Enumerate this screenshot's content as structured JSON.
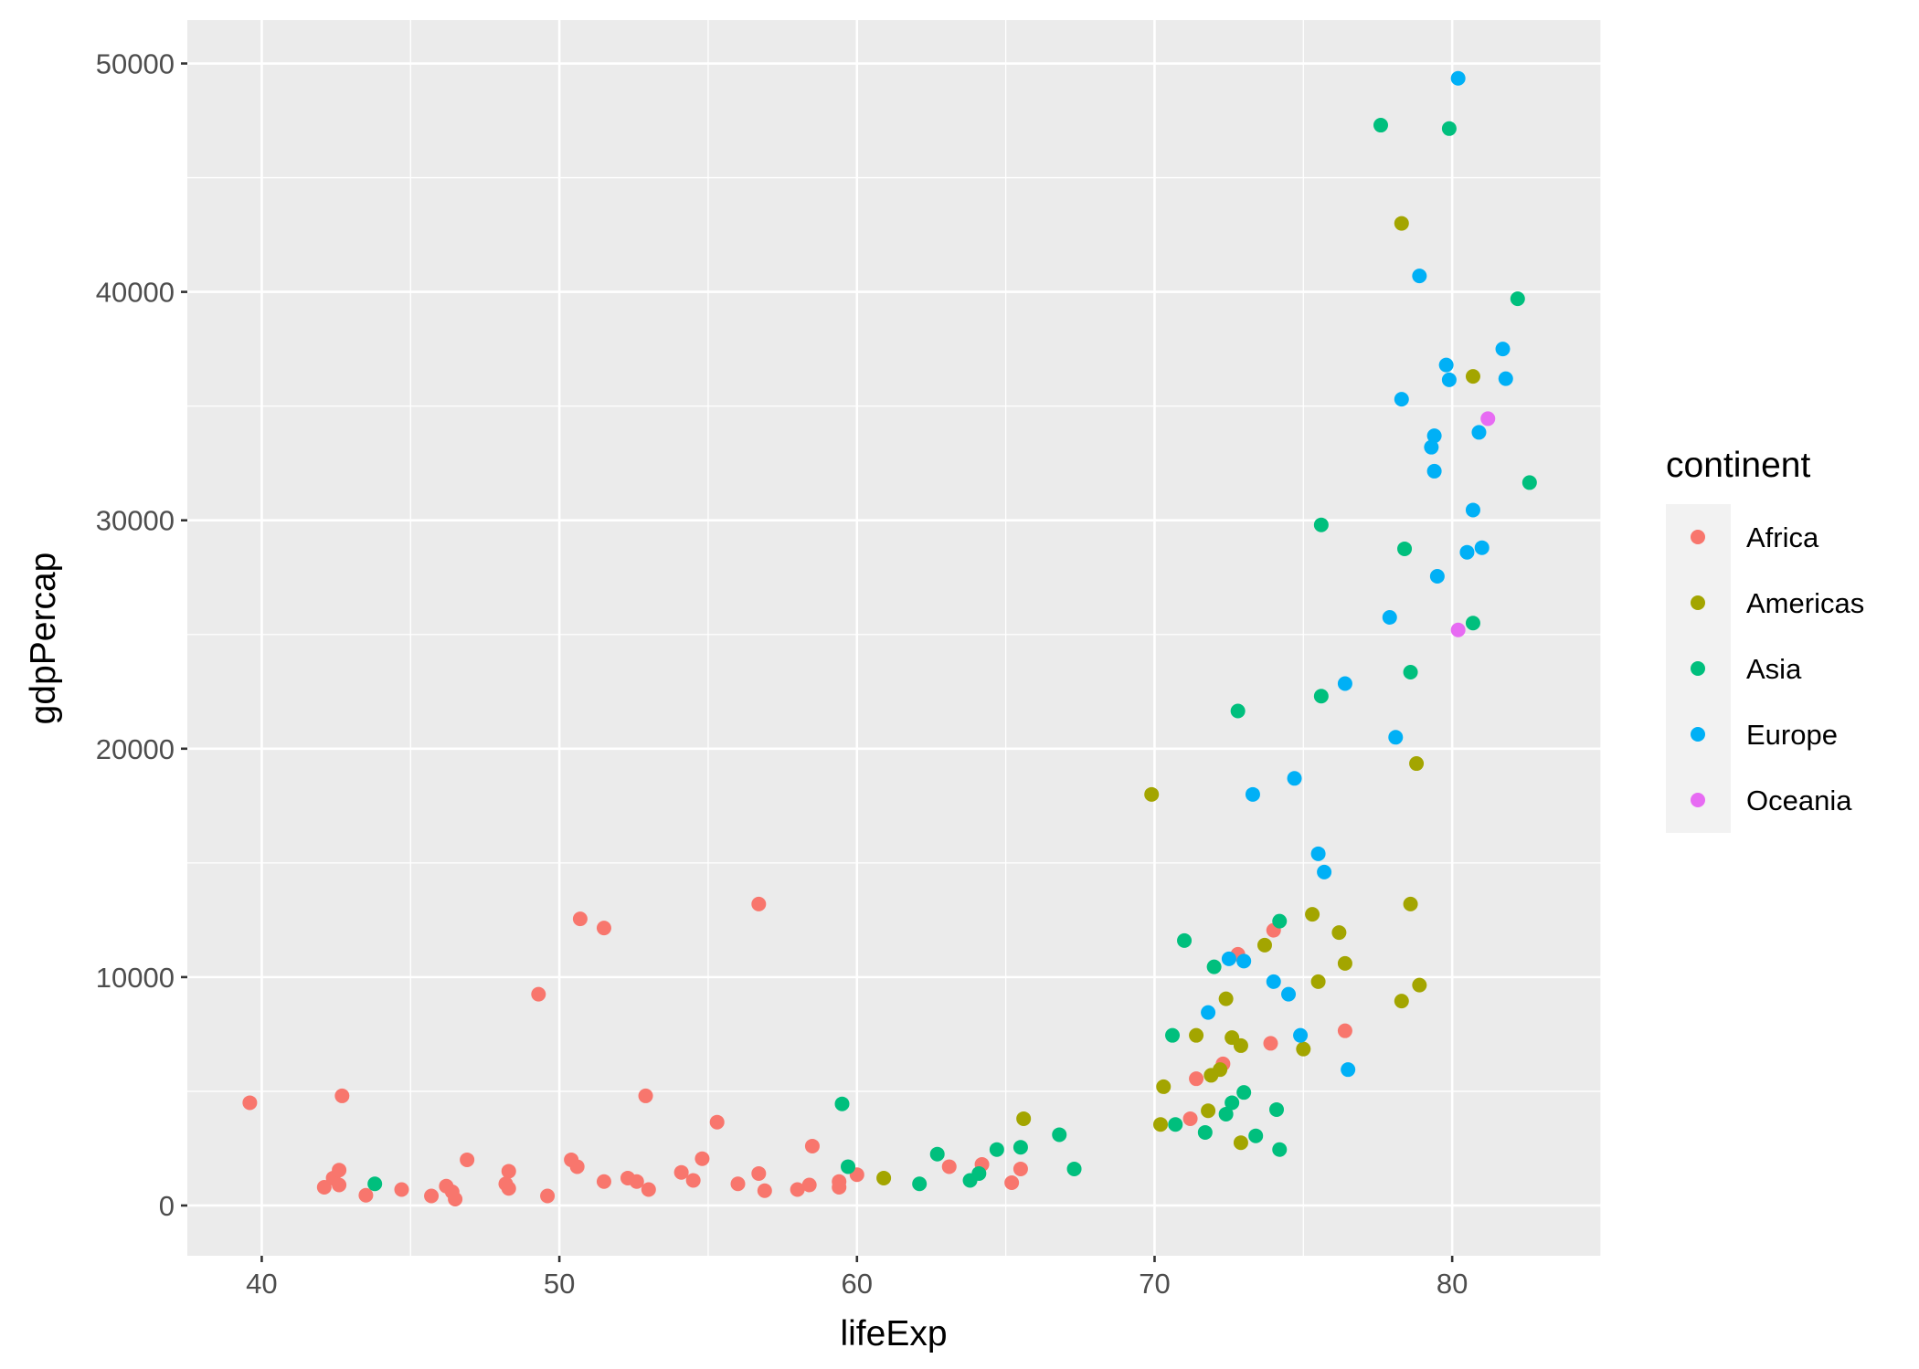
{
  "chart_data": {
    "type": "scatter",
    "xlabel": "lifeExp",
    "ylabel": "gdpPercap",
    "xlim": [
      37.5,
      85.0
    ],
    "ylim": [
      -2200,
      51900
    ],
    "x_ticks": [
      40,
      50,
      60,
      70,
      80
    ],
    "y_ticks": [
      0,
      10000,
      20000,
      30000,
      40000,
      50000
    ],
    "x_tick_labels": [
      "40",
      "50",
      "60",
      "70",
      "80"
    ],
    "y_tick_labels": [
      "0",
      "10000",
      "20000",
      "30000",
      "40000",
      "50000"
    ],
    "grid": true,
    "panel_background": "#EBEBEB",
    "legend": {
      "title": "continent",
      "placement": "right",
      "entries": [
        "Africa",
        "Americas",
        "Asia",
        "Europe",
        "Oceania"
      ]
    },
    "series": [
      {
        "name": "Africa",
        "color": "#F8766D",
        "points": [
          [
            39.6,
            4500
          ],
          [
            42.1,
            800
          ],
          [
            42.4,
            1200
          ],
          [
            42.6,
            1550
          ],
          [
            42.6,
            900
          ],
          [
            42.7,
            4800
          ],
          [
            43.5,
            450
          ],
          [
            44.7,
            700
          ],
          [
            45.7,
            420
          ],
          [
            46.2,
            850
          ],
          [
            46.4,
            600
          ],
          [
            46.5,
            280
          ],
          [
            46.9,
            2000
          ],
          [
            48.2,
            950
          ],
          [
            48.3,
            1500
          ],
          [
            48.3,
            750
          ],
          [
            49.3,
            9250
          ],
          [
            49.6,
            420
          ],
          [
            50.4,
            2000
          ],
          [
            50.7,
            12550
          ],
          [
            50.6,
            1700
          ],
          [
            51.5,
            12150
          ],
          [
            51.5,
            1050
          ],
          [
            52.3,
            1200
          ],
          [
            52.6,
            1050
          ],
          [
            52.9,
            4800
          ],
          [
            53.0,
            700
          ],
          [
            54.1,
            1450
          ],
          [
            54.5,
            1100
          ],
          [
            54.8,
            2050
          ],
          [
            55.3,
            3650
          ],
          [
            56.0,
            950
          ],
          [
            56.7,
            13200
          ],
          [
            56.7,
            1400
          ],
          [
            56.9,
            650
          ],
          [
            58.0,
            700
          ],
          [
            58.4,
            900
          ],
          [
            58.5,
            2600
          ],
          [
            59.4,
            800
          ],
          [
            59.4,
            1050
          ],
          [
            60.0,
            1350
          ],
          [
            63.1,
            1700
          ],
          [
            64.2,
            1800
          ],
          [
            65.2,
            1000
          ],
          [
            65.5,
            1600
          ],
          [
            71.2,
            3800
          ],
          [
            71.4,
            5550
          ],
          [
            72.3,
            6200
          ],
          [
            72.8,
            11000
          ],
          [
            73.9,
            7100
          ],
          [
            74.0,
            12050
          ],
          [
            76.4,
            7650
          ]
        ]
      },
      {
        "name": "Americas",
        "color": "#A3A500",
        "points": [
          [
            60.9,
            1200
          ],
          [
            65.6,
            3800
          ],
          [
            69.9,
            18000
          ],
          [
            70.3,
            5200
          ],
          [
            70.2,
            3550
          ],
          [
            71.4,
            7450
          ],
          [
            71.8,
            4150
          ],
          [
            71.9,
            5700
          ],
          [
            72.2,
            5950
          ],
          [
            72.4,
            9050
          ],
          [
            72.6,
            7350
          ],
          [
            72.9,
            7000
          ],
          [
            72.9,
            2750
          ],
          [
            73.7,
            11400
          ],
          [
            75.0,
            6850
          ],
          [
            75.3,
            12750
          ],
          [
            75.5,
            9800
          ],
          [
            76.2,
            11950
          ],
          [
            76.4,
            10600
          ],
          [
            78.3,
            43000
          ],
          [
            78.3,
            8950
          ],
          [
            78.6,
            13200
          ],
          [
            78.8,
            19350
          ],
          [
            78.9,
            9650
          ],
          [
            80.7,
            36300
          ]
        ]
      },
      {
        "name": "Asia",
        "color": "#00BF7D",
        "points": [
          [
            43.8,
            950
          ],
          [
            59.5,
            4450
          ],
          [
            59.7,
            1700
          ],
          [
            62.1,
            950
          ],
          [
            62.7,
            2250
          ],
          [
            63.8,
            1100
          ],
          [
            64.1,
            1400
          ],
          [
            64.7,
            2450
          ],
          [
            65.5,
            2550
          ],
          [
            66.8,
            3100
          ],
          [
            67.3,
            1600
          ],
          [
            70.6,
            7450
          ],
          [
            70.7,
            3550
          ],
          [
            71.0,
            11600
          ],
          [
            71.7,
            3200
          ],
          [
            72.0,
            10450
          ],
          [
            72.4,
            4000
          ],
          [
            72.6,
            4500
          ],
          [
            72.8,
            21650
          ],
          [
            73.0,
            4950
          ],
          [
            73.4,
            3050
          ],
          [
            74.1,
            4200
          ],
          [
            74.2,
            12450
          ],
          [
            74.2,
            2450
          ],
          [
            75.6,
            29800
          ],
          [
            75.6,
            22300
          ],
          [
            77.6,
            47300
          ],
          [
            78.4,
            28750
          ],
          [
            78.6,
            23350
          ],
          [
            79.9,
            47150
          ],
          [
            80.7,
            25500
          ],
          [
            82.2,
            39700
          ],
          [
            82.6,
            31650
          ]
        ]
      },
      {
        "name": "Europe",
        "color": "#00B0F6",
        "points": [
          [
            71.8,
            8450
          ],
          [
            72.5,
            10800
          ],
          [
            73.0,
            10700
          ],
          [
            73.3,
            18000
          ],
          [
            74.0,
            9800
          ],
          [
            74.5,
            9250
          ],
          [
            74.7,
            18700
          ],
          [
            74.9,
            7450
          ],
          [
            75.5,
            15400
          ],
          [
            75.7,
            14600
          ],
          [
            76.4,
            22850
          ],
          [
            76.5,
            5950
          ],
          [
            77.9,
            25750
          ],
          [
            78.1,
            20500
          ],
          [
            78.3,
            35300
          ],
          [
            78.9,
            40700
          ],
          [
            79.3,
            33200
          ],
          [
            79.4,
            33700
          ],
          [
            79.4,
            32150
          ],
          [
            79.5,
            27550
          ],
          [
            79.8,
            36800
          ],
          [
            79.9,
            36150
          ],
          [
            80.2,
            49350
          ],
          [
            80.5,
            28600
          ],
          [
            80.7,
            30450
          ],
          [
            80.9,
            33850
          ],
          [
            81.0,
            28800
          ],
          [
            81.7,
            37500
          ],
          [
            81.8,
            36200
          ]
        ]
      },
      {
        "name": "Oceania",
        "color": "#E76BF3",
        "points": [
          [
            80.2,
            25200
          ],
          [
            81.2,
            34450
          ]
        ]
      }
    ]
  }
}
